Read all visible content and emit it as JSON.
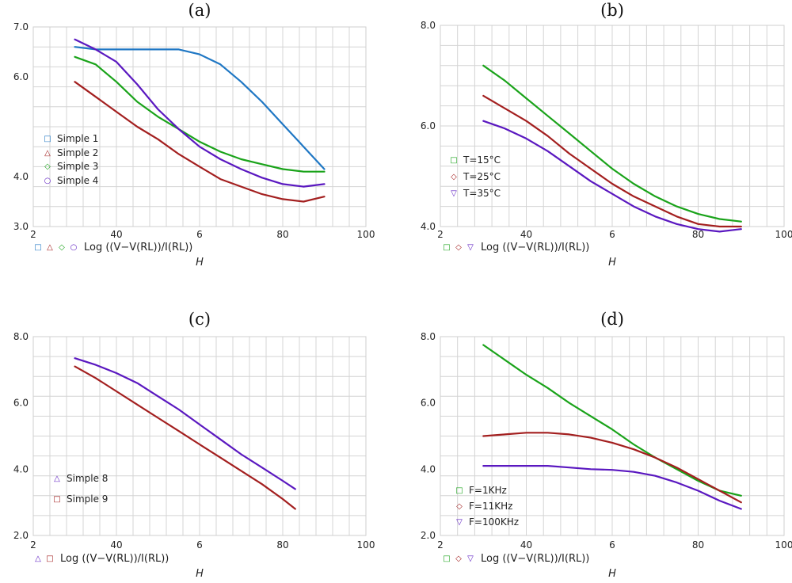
{
  "chart_data": [
    {
      "type": "line",
      "title": "(a)",
      "xlabel": "H",
      "ylabel": "Log ((V−V(RL))/I(RL))",
      "xticks": [
        "2",
        "40",
        "6",
        "80",
        "100"
      ],
      "yticks": [
        "3.0",
        "4.0",
        "6.0",
        "7.0"
      ],
      "xlim": [
        20,
        100
      ],
      "ylim": [
        3.0,
        7.0
      ],
      "legend_position": "left",
      "series": [
        {
          "name": "Simple 1",
          "color": "#1f77c4",
          "marker": "□",
          "x": [
            30,
            35,
            40,
            45,
            50,
            55,
            60,
            65,
            70,
            75,
            80,
            85,
            90
          ],
          "y": [
            6.6,
            6.55,
            6.55,
            6.55,
            6.55,
            6.55,
            6.45,
            6.25,
            5.9,
            5.5,
            5.05,
            4.6,
            4.15
          ]
        },
        {
          "name": "Simple 2",
          "color": "#a31f1f",
          "marker": "△",
          "x": [
            30,
            35,
            40,
            45,
            50,
            55,
            60,
            65,
            70,
            75,
            80,
            85,
            90
          ],
          "y": [
            5.9,
            5.6,
            5.3,
            5.0,
            4.75,
            4.45,
            4.2,
            3.95,
            3.8,
            3.65,
            3.55,
            3.5,
            3.6
          ]
        },
        {
          "name": "Simple 3",
          "color": "#1aa31a",
          "marker": "◇",
          "x": [
            30,
            35,
            40,
            45,
            50,
            55,
            60,
            65,
            70,
            75,
            80,
            85,
            90
          ],
          "y": [
            6.4,
            6.25,
            5.9,
            5.5,
            5.2,
            4.95,
            4.7,
            4.5,
            4.35,
            4.25,
            4.15,
            4.1,
            4.1
          ]
        },
        {
          "name": "Simple 4",
          "color": "#5a18c0",
          "marker": "○",
          "x": [
            30,
            35,
            40,
            45,
            50,
            55,
            60,
            65,
            70,
            75,
            80,
            85,
            90
          ],
          "y": [
            6.75,
            6.55,
            6.3,
            5.85,
            5.35,
            4.95,
            4.6,
            4.35,
            4.15,
            3.98,
            3.85,
            3.8,
            3.85
          ]
        }
      ]
    },
    {
      "type": "line",
      "title": "(b)",
      "xlabel": "H",
      "ylabel": "Log ((V−V(RL))/I(RL))",
      "xticks": [
        "2",
        "40",
        "6",
        "80",
        "100"
      ],
      "yticks": [
        "4.0",
        "6.0",
        "8.0"
      ],
      "xlim": [
        20,
        100
      ],
      "ylim": [
        4.0,
        8.0
      ],
      "legend_position": "left",
      "series": [
        {
          "name": "T=15°C",
          "color": "#1aa31a",
          "marker": "□",
          "x": [
            30,
            35,
            40,
            45,
            50,
            55,
            60,
            65,
            70,
            75,
            80,
            85,
            90
          ],
          "y": [
            7.2,
            6.9,
            6.55,
            6.2,
            5.85,
            5.5,
            5.15,
            4.85,
            4.6,
            4.4,
            4.25,
            4.15,
            4.1
          ]
        },
        {
          "name": "T=25°C",
          "color": "#a31f1f",
          "marker": "◇",
          "x": [
            30,
            35,
            40,
            45,
            50,
            55,
            60,
            65,
            70,
            75,
            80,
            85,
            90
          ],
          "y": [
            6.6,
            6.35,
            6.1,
            5.8,
            5.45,
            5.15,
            4.85,
            4.6,
            4.4,
            4.2,
            4.05,
            4.0,
            4.0
          ]
        },
        {
          "name": "T=35°C",
          "color": "#5a18c0",
          "marker": "▽",
          "x": [
            30,
            35,
            40,
            45,
            50,
            55,
            60,
            65,
            70,
            75,
            80,
            85,
            90
          ],
          "y": [
            6.1,
            5.95,
            5.75,
            5.5,
            5.2,
            4.9,
            4.65,
            4.4,
            4.2,
            4.05,
            3.95,
            3.9,
            3.95
          ]
        }
      ]
    },
    {
      "type": "line",
      "title": "(c)",
      "xlabel": "H",
      "ylabel": "Log ((V−V(RL))/I(RL))",
      "xticks": [
        "2",
        "40",
        "6",
        "80",
        "100"
      ],
      "yticks": [
        "2.0",
        "4.0",
        "6.0",
        "8.0"
      ],
      "xlim": [
        20,
        100
      ],
      "ylim": [
        2.0,
        8.0
      ],
      "legend_position": "left",
      "series": [
        {
          "name": "Simple 8",
          "color": "#5a18c0",
          "marker": "△",
          "x": [
            30,
            35,
            40,
            45,
            50,
            55,
            60,
            65,
            70,
            75,
            80,
            83
          ],
          "y": [
            7.35,
            7.15,
            6.9,
            6.6,
            6.2,
            5.8,
            5.35,
            4.9,
            4.45,
            4.05,
            3.65,
            3.4
          ]
        },
        {
          "name": "Simple 9",
          "color": "#a31f1f",
          "marker": "□",
          "x": [
            30,
            35,
            40,
            45,
            50,
            55,
            60,
            65,
            70,
            75,
            80,
            83
          ],
          "y": [
            7.1,
            6.75,
            6.35,
            5.95,
            5.55,
            5.15,
            4.75,
            4.35,
            3.95,
            3.55,
            3.1,
            2.8
          ]
        }
      ]
    },
    {
      "type": "line",
      "title": "(d)",
      "xlabel": "H",
      "ylabel": "Log ((V−V(RL))/I(RL))",
      "xticks": [
        "2",
        "40",
        "6",
        "80",
        "100"
      ],
      "yticks": [
        "2.0",
        "4.0",
        "6.0",
        "8.0"
      ],
      "xlim": [
        20,
        100
      ],
      "ylim": [
        2.0,
        8.0
      ],
      "legend_position": "left",
      "series": [
        {
          "name": "F=1KHz",
          "color": "#1aa31a",
          "marker": "□",
          "x": [
            30,
            35,
            40,
            45,
            50,
            55,
            60,
            65,
            70,
            75,
            80,
            85,
            90
          ],
          "y": [
            7.75,
            7.3,
            6.85,
            6.45,
            6.0,
            5.6,
            5.2,
            4.75,
            4.35,
            4.0,
            3.65,
            3.35,
            3.2
          ]
        },
        {
          "name": "F=11KHz",
          "color": "#a31f1f",
          "marker": "◇",
          "x": [
            30,
            35,
            40,
            45,
            50,
            55,
            60,
            65,
            70,
            75,
            80,
            85,
            90
          ],
          "y": [
            5.0,
            5.05,
            5.1,
            5.1,
            5.05,
            4.95,
            4.8,
            4.6,
            4.35,
            4.05,
            3.7,
            3.35,
            3.0
          ]
        },
        {
          "name": "F=100KHz",
          "color": "#5a18c0",
          "marker": "▽",
          "x": [
            30,
            35,
            40,
            45,
            50,
            55,
            60,
            65,
            70,
            75,
            80,
            85,
            90
          ],
          "y": [
            4.1,
            4.1,
            4.1,
            4.1,
            4.05,
            4.0,
            3.98,
            3.92,
            3.8,
            3.6,
            3.35,
            3.05,
            2.8
          ]
        }
      ]
    }
  ]
}
